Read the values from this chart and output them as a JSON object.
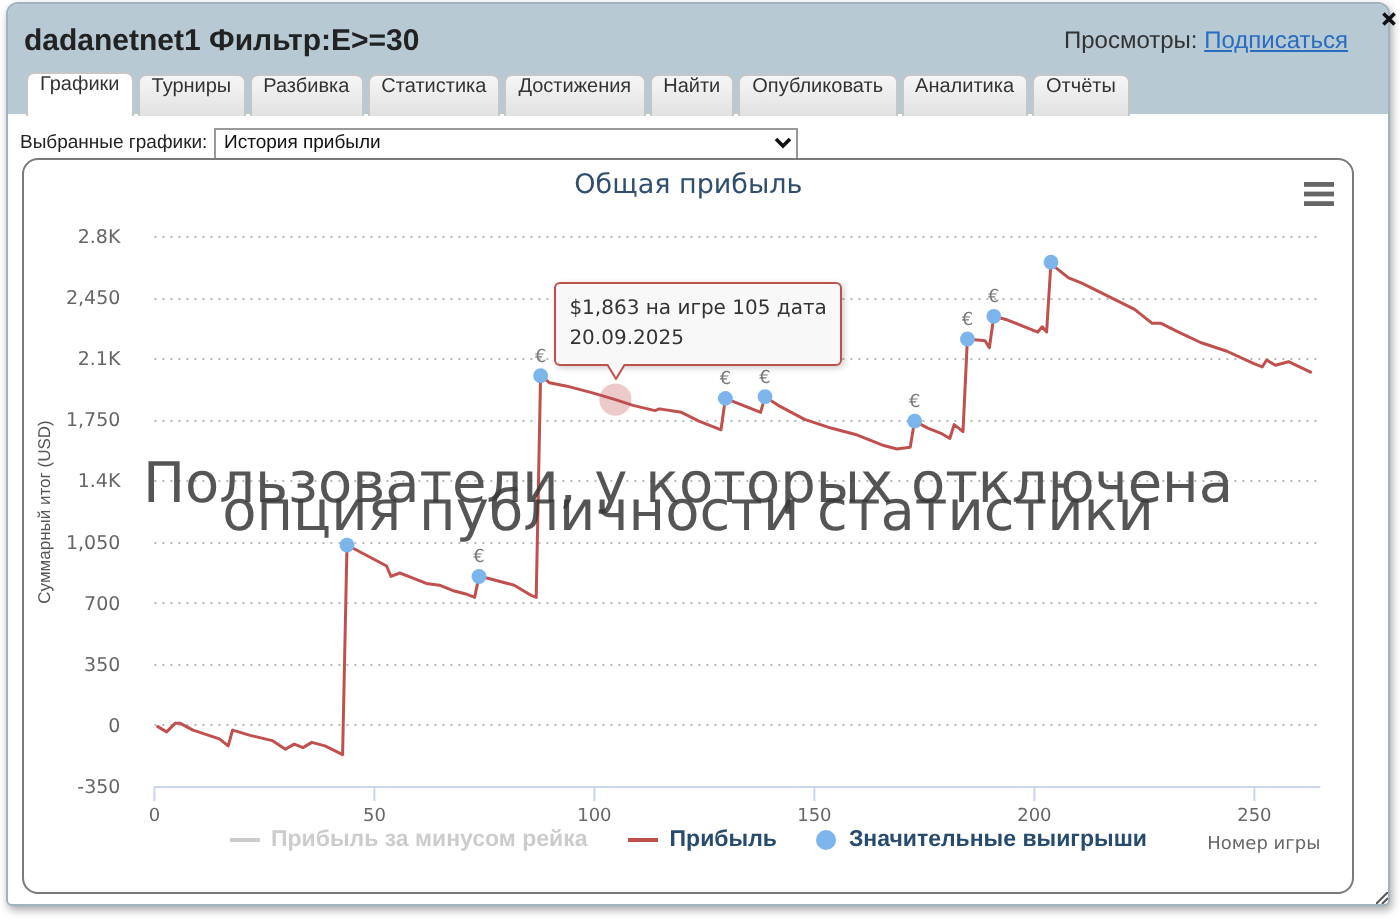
{
  "chart_data": {
    "type": "line",
    "title": "Общая прибыль",
    "xlabel": "Номер игры",
    "ylabel": "Суммарный итог (USD)",
    "xlim": [
      0,
      265
    ],
    "xticks": [
      0,
      50,
      100,
      150,
      200,
      250
    ],
    "ylim": [
      -350,
      2800
    ],
    "yticks": [
      -350,
      0,
      350,
      700,
      {
        "value": 1050,
        "label": "1,050"
      },
      {
        "value": 1400,
        "label": "1.4K"
      },
      {
        "value": 1750,
        "label": "1,750"
      },
      {
        "value": 2100,
        "label": "2.1K"
      },
      {
        "value": 2450,
        "label": "2,450"
      },
      {
        "value": 2800,
        "label": "2.8K"
      }
    ],
    "grid": "y",
    "legend": "bottom",
    "series": [
      {
        "name": "Прибыль за минусом рейка",
        "color": "#cccccc"
      },
      {
        "name": "Прибыль",
        "color": "#c0504d",
        "x": [
          1,
          3,
          5,
          6,
          9,
          15,
          17,
          18,
          22,
          27,
          30,
          32,
          34,
          36,
          39,
          43,
          44,
          47,
          50,
          53,
          54,
          56,
          59,
          62,
          65,
          68,
          71,
          73,
          74,
          76,
          82,
          86,
          87,
          88,
          90,
          94,
          100,
          105,
          109,
          114,
          115,
          120,
          124,
          129,
          130,
          138,
          139,
          142,
          148,
          154,
          157,
          160,
          166,
          169,
          172,
          173,
          176,
          179,
          181,
          182,
          184,
          185,
          189,
          190,
          191,
          194,
          201,
          202,
          203,
          204,
          205,
          208,
          211,
          215,
          223,
          227,
          229,
          233,
          238,
          244,
          250,
          252,
          253,
          255,
          258,
          263
        ],
        "values": [
          -10,
          -40,
          10,
          10,
          -30,
          -80,
          -120,
          -30,
          -60,
          -90,
          -140,
          -110,
          -130,
          -100,
          -120,
          -170,
          1030,
          990,
          950,
          910,
          850,
          870,
          840,
          810,
          800,
          770,
          750,
          730,
          850,
          840,
          800,
          740,
          730,
          2000,
          1960,
          1940,
          1900,
          1863,
          1830,
          1800,
          1810,
          1790,
          1740,
          1690,
          1870,
          1790,
          1880,
          1830,
          1750,
          1700,
          1680,
          1660,
          1600,
          1580,
          1590,
          1740,
          1700,
          1670,
          1640,
          1720,
          1680,
          2210,
          2200,
          2160,
          2340,
          2320,
          2250,
          2280,
          2250,
          2650,
          2620,
          2560,
          2530,
          2480,
          2380,
          2300,
          2300,
          2250,
          2190,
          2140,
          2070,
          2050,
          2090,
          2060,
          2080,
          2020
        ]
      },
      {
        "name": "Значительные выигрыши",
        "type": "scatter",
        "marker": "circle",
        "color": "#7cb5ec",
        "x": [
          44,
          74,
          88,
          130,
          139,
          173,
          185,
          191,
          204
        ],
        "values": [
          1030,
          850,
          2000,
          1870,
          1880,
          1740,
          2210,
          2340,
          2650
        ],
        "value_labels": [
          null,
          "€",
          "€",
          "€",
          "€",
          "€",
          "€",
          "€",
          null
        ]
      }
    ],
    "annotations": [
      "dadanetnet1 Фильтр:E>=30",
      "Просмотры:",
      "Подписаться",
      "Графики",
      "Турниры",
      "Разбивка",
      "Статистика",
      "Достижения",
      "Найти",
      "Опубликовать",
      "Аналитика",
      "Отчёты",
      "Выбранные графики:",
      "История прибыли",
      "Пользователи, у которых отключена\nопция публичности статистики",
      {
        "text": "$1,863 на игре 105 дата\n20.09.2025",
        "x": 105,
        "y": 1863
      }
    ]
  }
}
